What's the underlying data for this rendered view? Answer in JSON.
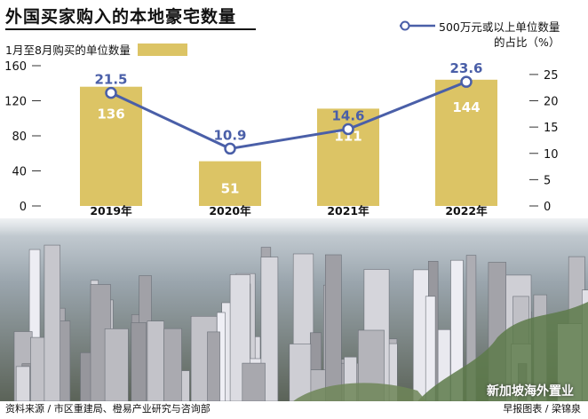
{
  "title": "外国买家购入的本地豪宅数量",
  "legend_bar": "1月至8月购买的单位数量",
  "legend_line_1": "500万元或以上单位数量",
  "legend_line_2": "的占比（%）",
  "source_left": "资料来源 / 市区重建局、橙易产业研究与咨询部",
  "source_right": "早报图表 / 梁锦泉",
  "watermark": "新加坡海外置业",
  "colors": {
    "bar": "#dcc465",
    "line": "#4a5fa8",
    "bar_text": "#ffffff"
  },
  "chart_data": {
    "type": "bar",
    "categories": [
      "2019年",
      "2020年",
      "2021年",
      "2022年"
    ],
    "series": [
      {
        "name": "1月至8月购买的单位数量",
        "type": "bar",
        "axis": "left",
        "values": [
          136,
          51,
          111,
          144
        ]
      },
      {
        "name": "500万元或以上单位数量的占比（%）",
        "type": "line",
        "axis": "right",
        "values": [
          21.5,
          10.9,
          14.6,
          23.6
        ]
      }
    ],
    "y_left": {
      "ticks": [
        0,
        40,
        80,
        120,
        160
      ],
      "ylim": [
        0,
        160
      ]
    },
    "y_right": {
      "ticks": [
        0,
        5,
        10,
        15,
        20,
        25
      ],
      "ylim": [
        0,
        26.67
      ]
    },
    "grid": false,
    "legend": "top"
  }
}
